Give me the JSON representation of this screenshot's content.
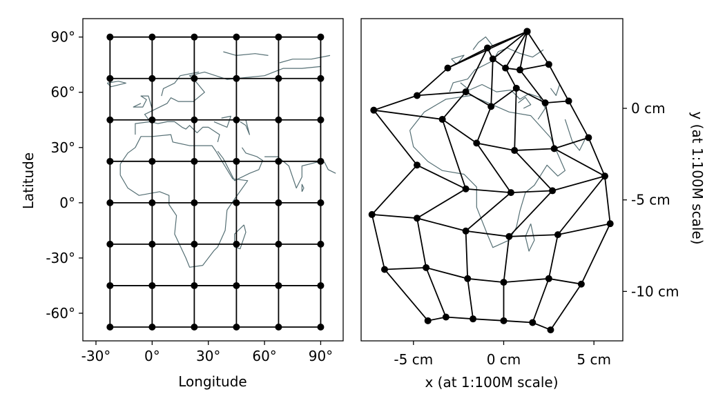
{
  "colors": {
    "grid": "#000000",
    "coastline": "#546e73",
    "background": "#ffffff"
  },
  "chart_data": [
    {
      "type": "scatter",
      "subtype": "graticule-geographic",
      "title": "",
      "xlabel": "Longitude",
      "ylabel": "Latitude",
      "xlim": [
        -37,
        102
      ],
      "ylim": [
        -75,
        100
      ],
      "xticks": [
        -30,
        0,
        30,
        60,
        90
      ],
      "xtick_labels": [
        "-30°",
        "0°",
        "30°",
        "60°",
        "90°"
      ],
      "yticks": [
        -60,
        -30,
        0,
        30,
        60,
        90
      ],
      "ytick_labels": [
        "-60°",
        "-30°",
        "0°",
        "30°",
        "60°",
        "90°"
      ],
      "lon_nodes": [
        -22.5,
        0,
        22.5,
        45,
        67.5,
        90
      ],
      "lat_nodes": [
        -67.5,
        -45,
        -22.5,
        0,
        22.5,
        45,
        67.5,
        90
      ],
      "grid": false,
      "coastlines": true
    },
    {
      "type": "scatter",
      "subtype": "graticule-projected",
      "title": "",
      "xlabel": "x (at 1:100M scale)",
      "ylabel": "y (at 1:100M scale)",
      "xlim": [
        -7.9,
        6.6
      ],
      "ylim": [
        -12.7,
        4.9
      ],
      "xticks": [
        -5,
        0,
        5
      ],
      "xtick_labels": [
        "-5 cm",
        "0 cm",
        "5 cm"
      ],
      "yticks": [
        0,
        -5,
        -10
      ],
      "ytick_labels": [
        "0 cm",
        "-5 cm",
        "-10 cm"
      ],
      "y_axis_side": "right",
      "grid": false,
      "coastlines": true,
      "node_rows_lat": [
        90,
        67.5,
        45,
        22.5,
        0,
        -22.5,
        -45,
        -67.5
      ],
      "node_cols_lon": [
        -22.5,
        0,
        22.5,
        45,
        67.5,
        90
      ],
      "nodes_x": [
        [
          1.3,
          1.3,
          1.3,
          1.3,
          1.3,
          1.3
        ],
        [
          -3.1,
          -0.9,
          -0.6,
          0.1,
          0.9,
          2.5
        ],
        [
          -4.8,
          -2.1,
          -0.7,
          0.7,
          2.3,
          3.6
        ],
        [
          -7.2,
          -3.4,
          -1.5,
          0.6,
          2.8,
          4.7
        ],
        [
          -4.8,
          -2.1,
          0.4,
          2.7,
          5.6,
          5.6
        ],
        [
          -7.3,
          -4.8,
          -2.1,
          0.3,
          3.0,
          5.9
        ],
        [
          -6.6,
          -4.3,
          -2.0,
          0.0,
          2.5,
          4.3
        ],
        [
          -4.2,
          -3.2,
          -1.7,
          0.0,
          1.6,
          2.6
        ]
      ],
      "nodes_y": [
        [
          4.2,
          4.2,
          4.2,
          4.2,
          4.2,
          4.2
        ],
        [
          2.2,
          3.3,
          2.7,
          2.2,
          2.1,
          2.4
        ],
        [
          0.7,
          0.9,
          0.1,
          1.1,
          0.3,
          0.4
        ],
        [
          -0.1,
          -0.6,
          -1.9,
          -2.3,
          -2.2,
          -1.6
        ],
        [
          -3.1,
          -4.4,
          -4.6,
          -4.5,
          -3.7,
          -3.7
        ],
        [
          -5.8,
          -6.0,
          -6.7,
          -7.0,
          -6.9,
          -6.3
        ],
        [
          -8.8,
          -8.7,
          -9.3,
          -9.5,
          -9.3,
          -9.6
        ],
        [
          -11.6,
          -11.4,
          -11.5,
          -11.6,
          -11.7,
          -12.1
        ]
      ]
    }
  ]
}
